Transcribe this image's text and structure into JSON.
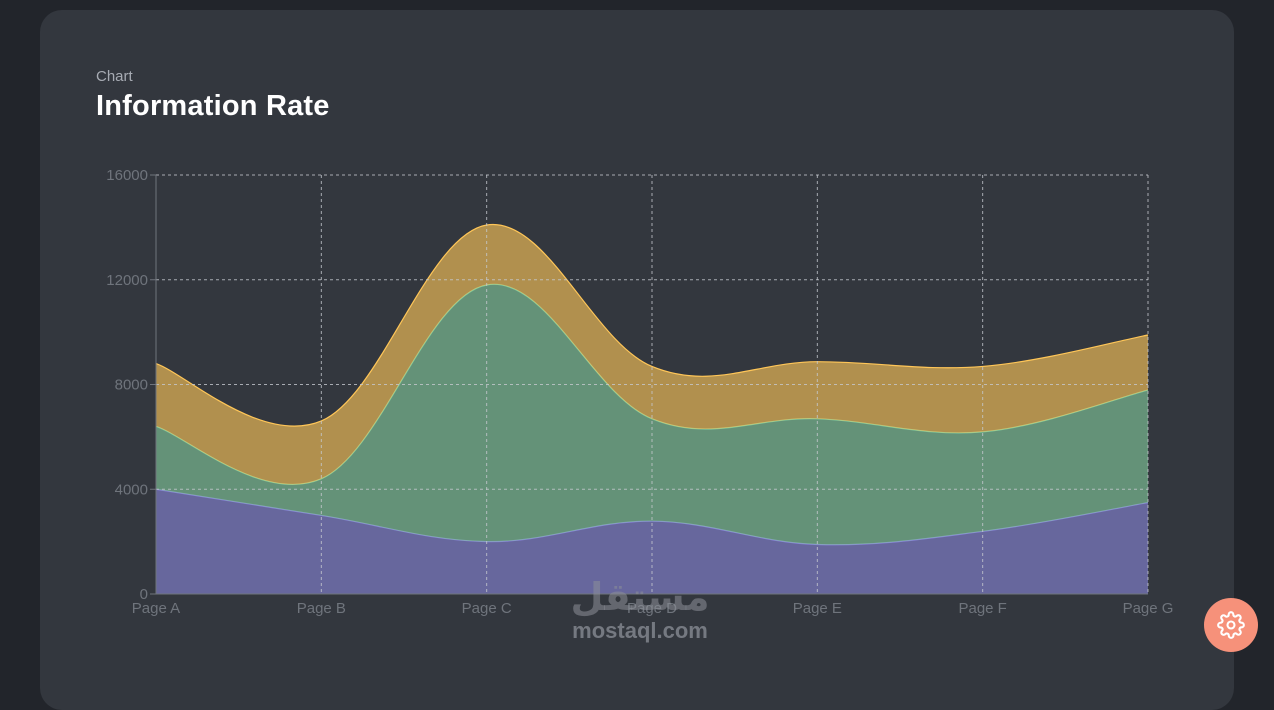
{
  "card": {
    "eyebrow": "Chart",
    "title": "Information Rate"
  },
  "watermark": {
    "brand_text": "مستقل",
    "url_text": "mostaql.com"
  },
  "settings": {
    "icon": "gear-icon",
    "color": "#f6917a"
  },
  "chart_data": {
    "type": "area",
    "stacked": true,
    "categories": [
      "Page A",
      "Page B",
      "Page C",
      "Page D",
      "Page E",
      "Page F",
      "Page G"
    ],
    "series": [
      {
        "color": "#8884d8",
        "values": [
          4000,
          3000,
          2000,
          2780,
          1890,
          2390,
          3490
        ]
      },
      {
        "color": "#82ca9d",
        "values": [
          2400,
          1398,
          9800,
          3908,
          4800,
          3800,
          4300
        ]
      },
      {
        "color": "#ffc658",
        "values": [
          2400,
          2210,
          2290,
          2000,
          2181,
          2500,
          2100
        ]
      }
    ],
    "y_ticks": [
      "0",
      "4000",
      "8000",
      "12000",
      "16000"
    ],
    "ylim": [
      0,
      16000
    ],
    "grid": true,
    "colors": {
      "grid": "#c6c9cf",
      "axis": "#6f747c"
    }
  }
}
